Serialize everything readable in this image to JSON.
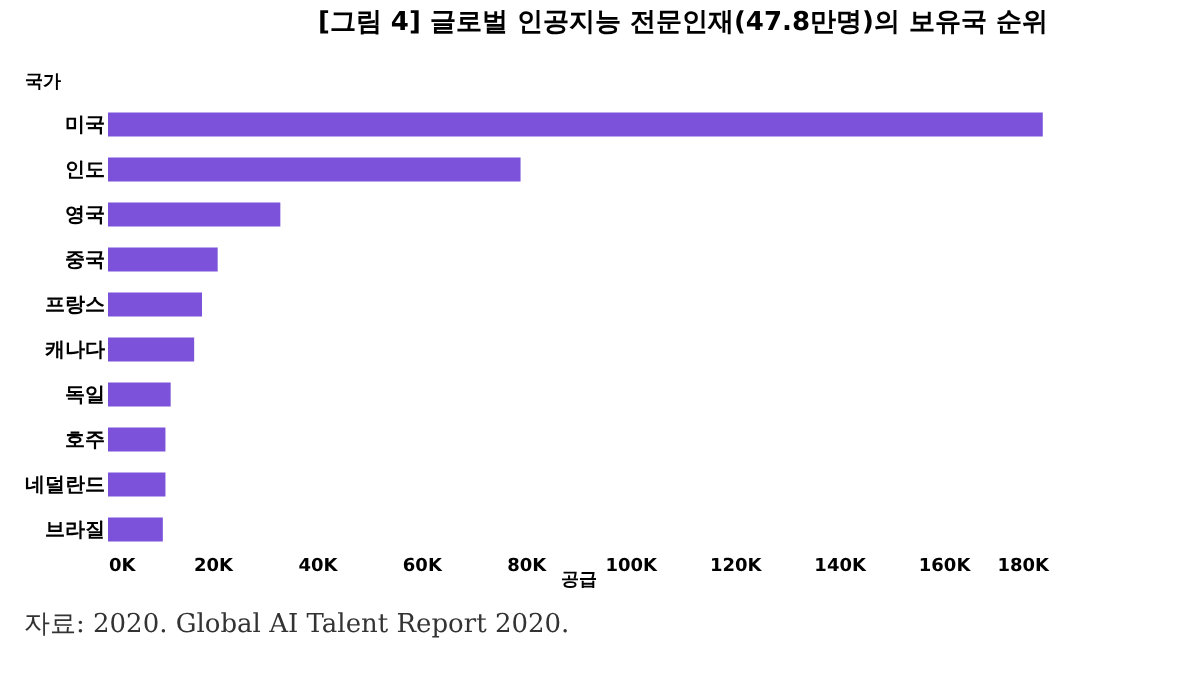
{
  "chart_data": {
    "type": "bar",
    "orientation": "horizontal",
    "title": "[그림 4] 글로벌 인공지능 전문인재(47.8만명)의 보유국 순위",
    "xlabel": "공급",
    "ylabel": "국가",
    "categories": [
      "미국",
      "인도",
      "영국",
      "중국",
      "프랑스",
      "캐나다",
      "독일",
      "호주",
      "네덜란드",
      "브라질"
    ],
    "values": [
      179,
      79,
      33,
      21,
      18,
      16.5,
      12,
      11,
      11,
      10.5
    ],
    "color": "#7b52d9",
    "xlim": [
      0,
      180
    ],
    "xticks": [
      {
        "value": 0,
        "label": "0K"
      },
      {
        "value": 20,
        "label": "20K"
      },
      {
        "value": 40,
        "label": "40K"
      },
      {
        "value": 60,
        "label": "60K"
      },
      {
        "value": 80,
        "label": "80K"
      },
      {
        "value": 100,
        "label": "100K"
      },
      {
        "value": 120,
        "label": "120K"
      },
      {
        "value": 140,
        "label": "140K"
      },
      {
        "value": 160,
        "label": "160K"
      },
      {
        "value": 180,
        "label": "180K"
      }
    ],
    "grid": false,
    "annotations": [
      "자료: 2020. Global AI Talent Report 2020."
    ]
  }
}
